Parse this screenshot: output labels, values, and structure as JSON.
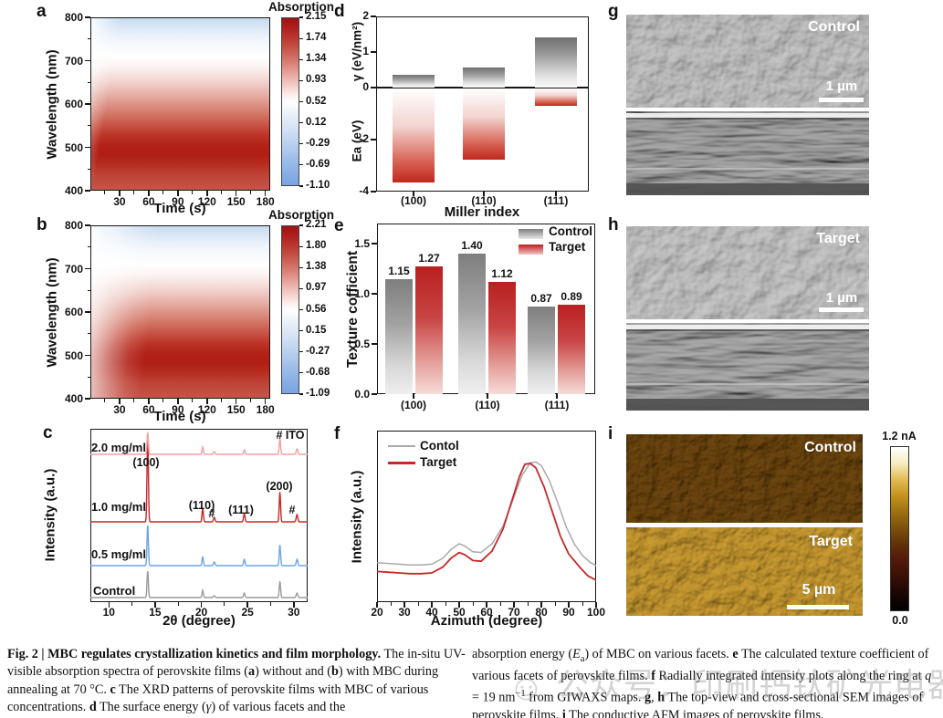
{
  "figure": {
    "panels": {
      "a": {
        "letter": "a",
        "y_label": "Wavelength (nm)",
        "x_label": "Time (s)",
        "x_ticks": [
          "30",
          "60",
          "90",
          "120",
          "150",
          "180"
        ],
        "y_ticks": [
          "800",
          "700",
          "600",
          "500",
          "400"
        ],
        "colorbar_title": "Absorption",
        "colorbar_ticks": [
          "2.15",
          "1.74",
          "1.34",
          "0.93",
          "0.52",
          "0.12",
          "-0.29",
          "-0.69",
          "-1.10"
        ]
      },
      "b": {
        "letter": "b",
        "y_label": "Wavelength (nm)",
        "x_label": "Time (s)",
        "x_ticks": [
          "30",
          "60",
          "90",
          "120",
          "150",
          "180"
        ],
        "y_ticks": [
          "800",
          "700",
          "600",
          "500",
          "400"
        ],
        "colorbar_title": "Absorption",
        "colorbar_ticks": [
          "2.21",
          "1.80",
          "1.38",
          "0.97",
          "0.56",
          "0.15",
          "-0.27",
          "-0.68",
          "-1.09"
        ]
      },
      "c": {
        "letter": "c",
        "y_label": "Intensity (a.u.)",
        "x_label": "2θ (degree)",
        "x_ticks": [
          "10",
          "15",
          "20",
          "25",
          "30"
        ],
        "trace_labels": [
          "2.0 mg/ml",
          "1.0 mg/ml",
          "0.5 mg/ml",
          "Control"
        ],
        "ann_100": "(100)",
        "ann_110": "(110)",
        "ann_hash1": "#",
        "ann_111": "(111)",
        "ann_200": "(200)",
        "ann_hash2": "#",
        "ann_ito": "# ITO"
      },
      "d": {
        "letter": "d",
        "y_label_top": "γ (eV/nm²)",
        "y_label_bottom": "Ea (eV)",
        "x_label": "Miller index",
        "x_ticks": [
          "(100)",
          "(110)",
          "(111)"
        ],
        "y_ticks": [
          "2",
          "1",
          "0",
          "-2",
          "-4"
        ]
      },
      "e": {
        "letter": "e",
        "y_label": "Texture cofficient",
        "x_ticks": [
          "(100)",
          "(110)",
          "(111)"
        ],
        "y_ticks": [
          "0.0",
          "0.5",
          "1.0",
          "1.5"
        ],
        "legend": [
          "Control",
          "Target"
        ],
        "value_labels": [
          "1.15",
          "1.27",
          "1.40",
          "1.12",
          "0.87",
          "0.89"
        ]
      },
      "f": {
        "letter": "f",
        "y_label": "Intensity (a.u.)",
        "x_label": "Azimuth (degree)",
        "x_ticks": [
          "20",
          "30",
          "40",
          "50",
          "60",
          "70",
          "80",
          "90",
          "100"
        ],
        "legend": [
          "Contol",
          "Target"
        ]
      },
      "g": {
        "letter": "g",
        "tag": "Control",
        "scalebar": "1 µm"
      },
      "h": {
        "letter": "h",
        "tag": "Target",
        "scalebar": "1 µm"
      },
      "i": {
        "letter": "i",
        "tag_top": "Control",
        "tag_bottom": "Target",
        "scalebar": "5 µm",
        "colorbar_top": "1.2 nA",
        "colorbar_bottom": "0.0"
      }
    },
    "caption": {
      "left": [
        {
          "t": "Fig. 2 | MBC regulates crystallization kinetics and film morphology.",
          "b": true
        },
        {
          "t": " The in-situ UV-visible absorption spectra of perovskite films ("
        },
        {
          "t": "a",
          "b": true
        },
        {
          "t": ") without and ("
        },
        {
          "t": "b",
          "b": true
        },
        {
          "t": ") with MBC during annealing at 70 °C. "
        },
        {
          "t": "c",
          "b": true
        },
        {
          "t": " The XRD patterns of perovskite films with MBC of various concentrations. "
        },
        {
          "t": "d",
          "b": true
        },
        {
          "t": " The surface energy ("
        },
        {
          "t": "γ",
          "i": true
        },
        {
          "t": ") of various facets and the"
        }
      ],
      "right": [
        {
          "t": "absorption energy ("
        },
        {
          "t": "E",
          "i": true
        },
        {
          "t": "a",
          "sub": true
        },
        {
          "t": ") of MBC on various facets. "
        },
        {
          "t": "e",
          "b": true
        },
        {
          "t": " The calculated texture coefficient of various facets of perovskite films. "
        },
        {
          "t": "f",
          "b": true
        },
        {
          "t": " Radially integrated intensity plots along the ring at "
        },
        {
          "t": "q",
          "i": true
        },
        {
          "t": " = 19 nm"
        },
        {
          "t": "−1",
          "sup": true
        },
        {
          "t": " from GIWAXS maps. "
        },
        {
          "t": "g",
          "b": true
        },
        {
          "t": ", "
        },
        {
          "t": "h",
          "b": true
        },
        {
          "t": " The top-view and cross-sectional SEM images of perovskite films. "
        },
        {
          "t": "i",
          "b": true
        },
        {
          "t": " The conductive AFM images of perovskite films."
        }
      ]
    },
    "watermark": "公众号：印刷钙钛矿光电器件"
  },
  "chart_data": [
    {
      "id": "a",
      "type": "heatmap",
      "title": "Absorption",
      "xlabel": "Time (s)",
      "ylabel": "Wavelength (nm)",
      "x_range": [
        0,
        185
      ],
      "x_ticks": [
        30,
        60,
        90,
        120,
        150,
        180
      ],
      "y_range": [
        400,
        800
      ],
      "y_ticks": [
        800,
        700,
        600,
        500,
        400
      ],
      "colorbar": {
        "label": "Absorption",
        "min": -1.1,
        "max": 2.15,
        "ticks": [
          2.15,
          1.74,
          1.34,
          0.93,
          0.52,
          0.12,
          -0.29,
          -0.69,
          -1.1
        ],
        "colormap": "blue-white-red"
      },
      "note": "Control film: strong absorption (red) below ~660 nm, deepest 460-530 nm, develops after ~20 s"
    },
    {
      "id": "b",
      "type": "heatmap",
      "title": "Absorption",
      "xlabel": "Time (s)",
      "ylabel": "Wavelength (nm)",
      "x_range": [
        0,
        185
      ],
      "x_ticks": [
        30,
        60,
        90,
        120,
        150,
        180
      ],
      "y_range": [
        400,
        800
      ],
      "y_ticks": [
        800,
        700,
        600,
        500,
        400
      ],
      "colorbar": {
        "label": "Absorption",
        "min": -1.09,
        "max": 2.21,
        "ticks": [
          2.21,
          1.8,
          1.38,
          0.97,
          0.56,
          0.15,
          -0.27,
          -0.68,
          -1.09
        ],
        "colormap": "blue-white-red"
      },
      "note": "MBC film: absorption develops more slowly, reaching steady state after ~60 s"
    },
    {
      "id": "c",
      "type": "line",
      "xlabel": "2θ (degree)",
      "ylabel": "Intensity (a.u.)",
      "x_range": [
        8,
        31.5
      ],
      "x_ticks": [
        10,
        15,
        20,
        25,
        30
      ],
      "peak_positions": [
        14.2,
        20.15,
        21.4,
        24.65,
        28.5,
        30.35
      ],
      "peak_widths": [
        0.1,
        0.1,
        0.12,
        0.11,
        0.1,
        0.12
      ],
      "peak_labels": [
        "(100)",
        "(110)",
        "#",
        "(111)",
        "(200)",
        "#"
      ],
      "series": [
        {
          "name": "2.0 mg/ml",
          "color": "#f2a1a0",
          "baseline": 28,
          "peak_heights": [
            24,
            8,
            3,
            5,
            18,
            6
          ]
        },
        {
          "name": "1.0 mg/ml",
          "color": "#c62828",
          "baseline": 102,
          "peak_heights": [
            99,
            15,
            5,
            9,
            33,
            8
          ]
        },
        {
          "name": "0.5 mg/ml",
          "color": "#6fa3e8",
          "baseline": 150,
          "peak_heights": [
            46,
            10,
            4,
            7,
            23,
            7
          ]
        },
        {
          "name": "Control",
          "color": "#9a9a9a",
          "baseline": 185,
          "peak_heights": [
            30,
            8,
            2,
            5,
            18,
            5
          ]
        }
      ]
    },
    {
      "id": "d",
      "type": "bar",
      "categories": [
        "(100)",
        "(110)",
        "(111)"
      ],
      "xlabel": "Miller index",
      "y_ticks": [
        2,
        1,
        0,
        -2,
        -4
      ],
      "series": [
        {
          "name": "γ (eV/nm²)",
          "values": [
            0.35,
            0.57,
            1.4
          ],
          "color": "gray-gradient"
        },
        {
          "name": "Ea (eV)",
          "values": [
            -3.6,
            -2.75,
            -0.65
          ],
          "color": "red-gradient"
        }
      ]
    },
    {
      "id": "e",
      "type": "bar",
      "categories": [
        "(100)",
        "(110)",
        "(111)"
      ],
      "ylabel": "Texture cofficient",
      "y_ticks": [
        0.0,
        0.5,
        1.0,
        1.5
      ],
      "ylim": [
        0,
        1.7
      ],
      "legend_position": "top-right",
      "series": [
        {
          "name": "Control",
          "values": [
            1.15,
            1.4,
            0.87
          ],
          "color": "#8a8a8a"
        },
        {
          "name": "Target",
          "values": [
            1.27,
            1.12,
            0.89
          ],
          "color": "#c62828"
        }
      ]
    },
    {
      "id": "f",
      "type": "line",
      "xlabel": "Azimuth (degree)",
      "ylabel": "Intensity (a.u.)",
      "x_range": [
        20,
        100
      ],
      "x_ticks": [
        20,
        30,
        40,
        50,
        60,
        70,
        80,
        90,
        100
      ],
      "legend_position": "top-left",
      "series": [
        {
          "name": "Contol",
          "color": "#a9a9a9",
          "x": [
            20,
            24,
            28,
            32,
            36,
            40,
            44,
            47,
            50,
            52,
            55,
            58,
            62,
            66,
            70,
            73,
            76,
            78,
            80,
            83,
            86,
            89,
            92,
            95,
            98,
            100
          ],
          "y": [
            0.27,
            0.265,
            0.26,
            0.255,
            0.255,
            0.26,
            0.3,
            0.36,
            0.4,
            0.385,
            0.345,
            0.34,
            0.4,
            0.52,
            0.72,
            0.87,
            0.955,
            0.96,
            0.935,
            0.83,
            0.68,
            0.52,
            0.4,
            0.32,
            0.27,
            0.25
          ]
        },
        {
          "name": "Target",
          "color": "#c62828",
          "x": [
            20,
            24,
            28,
            32,
            36,
            40,
            44,
            47,
            50,
            52,
            55,
            58,
            62,
            66,
            70,
            72,
            74,
            76,
            78,
            81,
            84,
            87,
            90,
            94,
            97,
            100
          ],
          "y": [
            0.21,
            0.205,
            0.2,
            0.195,
            0.195,
            0.2,
            0.24,
            0.3,
            0.34,
            0.325,
            0.285,
            0.28,
            0.35,
            0.5,
            0.74,
            0.86,
            0.945,
            0.95,
            0.92,
            0.79,
            0.62,
            0.45,
            0.33,
            0.24,
            0.18,
            0.15
          ]
        }
      ]
    }
  ]
}
